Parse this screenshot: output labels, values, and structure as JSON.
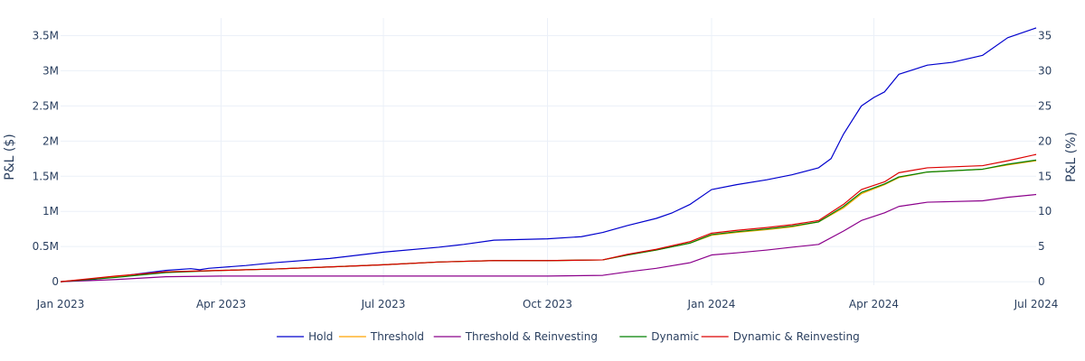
{
  "chart_data": {
    "type": "line",
    "title": "",
    "xlabel": "",
    "ylabel_left": "P&L ($)",
    "ylabel_right": "P&L (%)",
    "xlim": [
      "2023-01-01",
      "2024-07-01"
    ],
    "ylim_left": [
      -50000,
      3750000
    ],
    "ylim_right": [
      -0.5,
      37.5
    ],
    "x_ticks": [
      {
        "date": "2023-01-01",
        "label": "Jan 2023"
      },
      {
        "date": "2023-04-01",
        "label": "Apr 2023"
      },
      {
        "date": "2023-07-01",
        "label": "Jul 2023"
      },
      {
        "date": "2023-10-01",
        "label": "Oct 2023"
      },
      {
        "date": "2024-01-01",
        "label": "Jan 2024"
      },
      {
        "date": "2024-04-01",
        "label": "Apr 2024"
      },
      {
        "date": "2024-07-01",
        "label": "Jul 2024"
      }
    ],
    "y_left_ticks": [
      {
        "value": 0,
        "label": "0"
      },
      {
        "value": 500000,
        "label": "0.5M"
      },
      {
        "value": 1000000,
        "label": "1M"
      },
      {
        "value": 1500000,
        "label": "1.5M"
      },
      {
        "value": 2000000,
        "label": "2M"
      },
      {
        "value": 2500000,
        "label": "2.5M"
      },
      {
        "value": 3000000,
        "label": "3M"
      },
      {
        "value": 3500000,
        "label": "3.5M"
      }
    ],
    "y_right_ticks": [
      {
        "value": 0,
        "label": "0"
      },
      {
        "value": 5,
        "label": "5"
      },
      {
        "value": 10,
        "label": "10"
      },
      {
        "value": 15,
        "label": "15"
      },
      {
        "value": 20,
        "label": "20"
      },
      {
        "value": 25,
        "label": "25"
      },
      {
        "value": 30,
        "label": "30"
      },
      {
        "value": 35,
        "label": "35"
      }
    ],
    "grid": true,
    "legend_position": "bottom-center",
    "series": [
      {
        "name": "Hold",
        "color": "#0000cd",
        "points": [
          [
            "2023-01-01",
            0
          ],
          [
            "2023-01-15",
            20000
          ],
          [
            "2023-02-01",
            70000
          ],
          [
            "2023-02-15",
            115000
          ],
          [
            "2023-03-01",
            160000
          ],
          [
            "2023-03-15",
            185000
          ],
          [
            "2023-03-20",
            170000
          ],
          [
            "2023-03-25",
            190000
          ],
          [
            "2023-04-15",
            230000
          ],
          [
            "2023-05-01",
            270000
          ],
          [
            "2023-06-01",
            330000
          ],
          [
            "2023-07-01",
            420000
          ],
          [
            "2023-08-01",
            490000
          ],
          [
            "2023-08-15",
            530000
          ],
          [
            "2023-09-01",
            590000
          ],
          [
            "2023-10-01",
            610000
          ],
          [
            "2023-10-20",
            640000
          ],
          [
            "2023-11-01",
            700000
          ],
          [
            "2023-11-15",
            800000
          ],
          [
            "2023-12-01",
            900000
          ],
          [
            "2023-12-10",
            980000
          ],
          [
            "2023-12-20",
            1100000
          ],
          [
            "2024-01-01",
            1310000
          ],
          [
            "2024-01-15",
            1380000
          ],
          [
            "2024-02-01",
            1450000
          ],
          [
            "2024-02-15",
            1520000
          ],
          [
            "2024-03-01",
            1620000
          ],
          [
            "2024-03-08",
            1750000
          ],
          [
            "2024-03-15",
            2100000
          ],
          [
            "2024-03-20",
            2300000
          ],
          [
            "2024-03-25",
            2500000
          ],
          [
            "2024-04-01",
            2620000
          ],
          [
            "2024-04-07",
            2700000
          ],
          [
            "2024-04-15",
            2950000
          ],
          [
            "2024-05-01",
            3080000
          ],
          [
            "2024-05-15",
            3120000
          ],
          [
            "2024-06-01",
            3220000
          ],
          [
            "2024-06-15",
            3470000
          ],
          [
            "2024-07-01",
            3610000
          ]
        ]
      },
      {
        "name": "Threshold",
        "color": "#ffa500",
        "points": [
          [
            "2023-01-01",
            0
          ],
          [
            "2023-02-01",
            70000
          ],
          [
            "2023-03-01",
            140000
          ],
          [
            "2023-04-01",
            160000
          ],
          [
            "2023-05-01",
            180000
          ],
          [
            "2023-06-01",
            210000
          ],
          [
            "2023-07-01",
            240000
          ],
          [
            "2023-08-01",
            280000
          ],
          [
            "2023-09-01",
            300000
          ],
          [
            "2023-10-01",
            300000
          ],
          [
            "2023-11-01",
            310000
          ],
          [
            "2023-11-15",
            380000
          ],
          [
            "2023-12-01",
            450000
          ],
          [
            "2023-12-20",
            550000
          ],
          [
            "2024-01-01",
            660000
          ],
          [
            "2024-01-15",
            700000
          ],
          [
            "2024-02-01",
            740000
          ],
          [
            "2024-02-15",
            780000
          ],
          [
            "2024-03-01",
            850000
          ],
          [
            "2024-03-15",
            1050000
          ],
          [
            "2024-03-25",
            1250000
          ],
          [
            "2024-04-07",
            1380000
          ],
          [
            "2024-04-15",
            1480000
          ],
          [
            "2024-05-01",
            1560000
          ],
          [
            "2024-06-01",
            1600000
          ],
          [
            "2024-06-15",
            1660000
          ],
          [
            "2024-07-01",
            1720000
          ]
        ]
      },
      {
        "name": "Threshold & Reinvesting",
        "color": "#8b008b",
        "points": [
          [
            "2023-01-01",
            0
          ],
          [
            "2023-02-01",
            30000
          ],
          [
            "2023-03-01",
            70000
          ],
          [
            "2023-04-01",
            80000
          ],
          [
            "2023-05-01",
            80000
          ],
          [
            "2023-06-01",
            80000
          ],
          [
            "2023-07-01",
            80000
          ],
          [
            "2023-08-01",
            80000
          ],
          [
            "2023-09-01",
            80000
          ],
          [
            "2023-10-01",
            80000
          ],
          [
            "2023-11-01",
            90000
          ],
          [
            "2023-11-15",
            140000
          ],
          [
            "2023-12-01",
            190000
          ],
          [
            "2023-12-20",
            270000
          ],
          [
            "2024-01-01",
            380000
          ],
          [
            "2024-01-15",
            410000
          ],
          [
            "2024-02-01",
            450000
          ],
          [
            "2024-02-15",
            490000
          ],
          [
            "2024-03-01",
            530000
          ],
          [
            "2024-03-15",
            720000
          ],
          [
            "2024-03-25",
            870000
          ],
          [
            "2024-04-07",
            980000
          ],
          [
            "2024-04-15",
            1070000
          ],
          [
            "2024-05-01",
            1130000
          ],
          [
            "2024-06-01",
            1150000
          ],
          [
            "2024-06-15",
            1200000
          ],
          [
            "2024-07-01",
            1240000
          ]
        ]
      },
      {
        "name": "Dynamic",
        "color": "#008000",
        "points": [
          [
            "2023-01-01",
            0
          ],
          [
            "2023-02-01",
            60000
          ],
          [
            "2023-03-01",
            130000
          ],
          [
            "2023-04-01",
            160000
          ],
          [
            "2023-05-01",
            180000
          ],
          [
            "2023-06-01",
            210000
          ],
          [
            "2023-07-01",
            240000
          ],
          [
            "2023-08-01",
            280000
          ],
          [
            "2023-09-01",
            300000
          ],
          [
            "2023-10-01",
            300000
          ],
          [
            "2023-11-01",
            310000
          ],
          [
            "2023-11-15",
            380000
          ],
          [
            "2023-12-01",
            450000
          ],
          [
            "2023-12-20",
            550000
          ],
          [
            "2024-01-01",
            670000
          ],
          [
            "2024-01-15",
            710000
          ],
          [
            "2024-02-01",
            750000
          ],
          [
            "2024-02-15",
            790000
          ],
          [
            "2024-03-01",
            850000
          ],
          [
            "2024-03-15",
            1070000
          ],
          [
            "2024-03-25",
            1270000
          ],
          [
            "2024-04-07",
            1390000
          ],
          [
            "2024-04-15",
            1490000
          ],
          [
            "2024-05-01",
            1560000
          ],
          [
            "2024-06-01",
            1600000
          ],
          [
            "2024-06-15",
            1670000
          ],
          [
            "2024-07-01",
            1730000
          ]
        ]
      },
      {
        "name": "Dynamic & Reinvesting",
        "color": "#dc0000",
        "points": [
          [
            "2023-01-01",
            0
          ],
          [
            "2023-02-01",
            80000
          ],
          [
            "2023-03-01",
            140000
          ],
          [
            "2023-04-01",
            160000
          ],
          [
            "2023-05-01",
            180000
          ],
          [
            "2023-06-01",
            210000
          ],
          [
            "2023-07-01",
            240000
          ],
          [
            "2023-08-01",
            280000
          ],
          [
            "2023-09-01",
            300000
          ],
          [
            "2023-10-01",
            300000
          ],
          [
            "2023-11-01",
            310000
          ],
          [
            "2023-11-15",
            390000
          ],
          [
            "2023-12-01",
            460000
          ],
          [
            "2023-12-20",
            570000
          ],
          [
            "2024-01-01",
            690000
          ],
          [
            "2024-01-15",
            730000
          ],
          [
            "2024-02-01",
            770000
          ],
          [
            "2024-02-15",
            810000
          ],
          [
            "2024-03-01",
            870000
          ],
          [
            "2024-03-15",
            1100000
          ],
          [
            "2024-03-25",
            1310000
          ],
          [
            "2024-04-07",
            1420000
          ],
          [
            "2024-04-15",
            1550000
          ],
          [
            "2024-05-01",
            1620000
          ],
          [
            "2024-06-01",
            1650000
          ],
          [
            "2024-06-15",
            1720000
          ],
          [
            "2024-07-01",
            1810000
          ]
        ]
      }
    ]
  }
}
